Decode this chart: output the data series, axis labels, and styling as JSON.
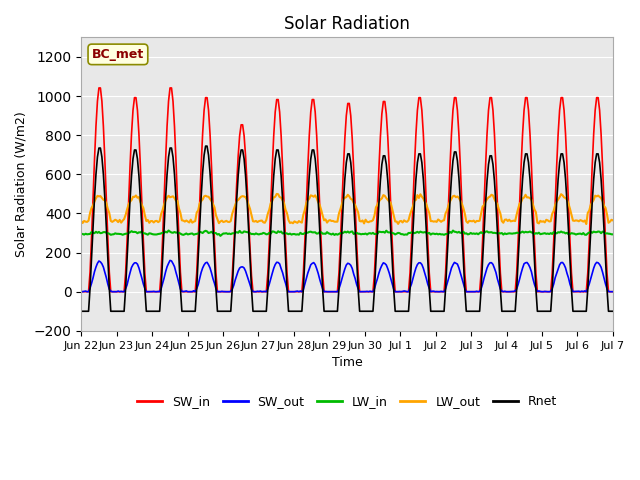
{
  "title": "Solar Radiation",
  "xlabel": "Time",
  "ylabel": "Solar Radiation (W/m2)",
  "ylim": [
    -200,
    1300
  ],
  "yticks": [
    -200,
    0,
    200,
    400,
    600,
    800,
    1000,
    1200
  ],
  "plot_bg_color": "#e8e8e8",
  "series_colors": {
    "SW_in": "#ff0000",
    "SW_out": "#0000ff",
    "LW_in": "#00bb00",
    "LW_out": "#ffa500",
    "Rnet": "#000000"
  },
  "x_tick_labels": [
    "Jun 22",
    "Jun 23",
    "Jun 24",
    "Jun 25",
    "Jun 26",
    "Jun 27",
    "Jun 28",
    "Jun 29",
    "Jun 30",
    "Jul 1",
    "Jul 2",
    "Jul 3",
    "Jul 4",
    "Jul 5",
    "Jul 6",
    "Jul 7"
  ],
  "station_label": "BC_met",
  "legend_entries": [
    "SW_in",
    "SW_out",
    "LW_in",
    "LW_out",
    "Rnet"
  ],
  "sw_peaks": [
    1050,
    1000,
    1050,
    1000,
    860,
    990,
    990,
    970,
    980,
    1000,
    1000,
    1000,
    1000,
    1000,
    1000
  ],
  "rnet_peaks": [
    740,
    730,
    740,
    750,
    730,
    730,
    730,
    710,
    700,
    710,
    720,
    700,
    710,
    710,
    710
  ]
}
